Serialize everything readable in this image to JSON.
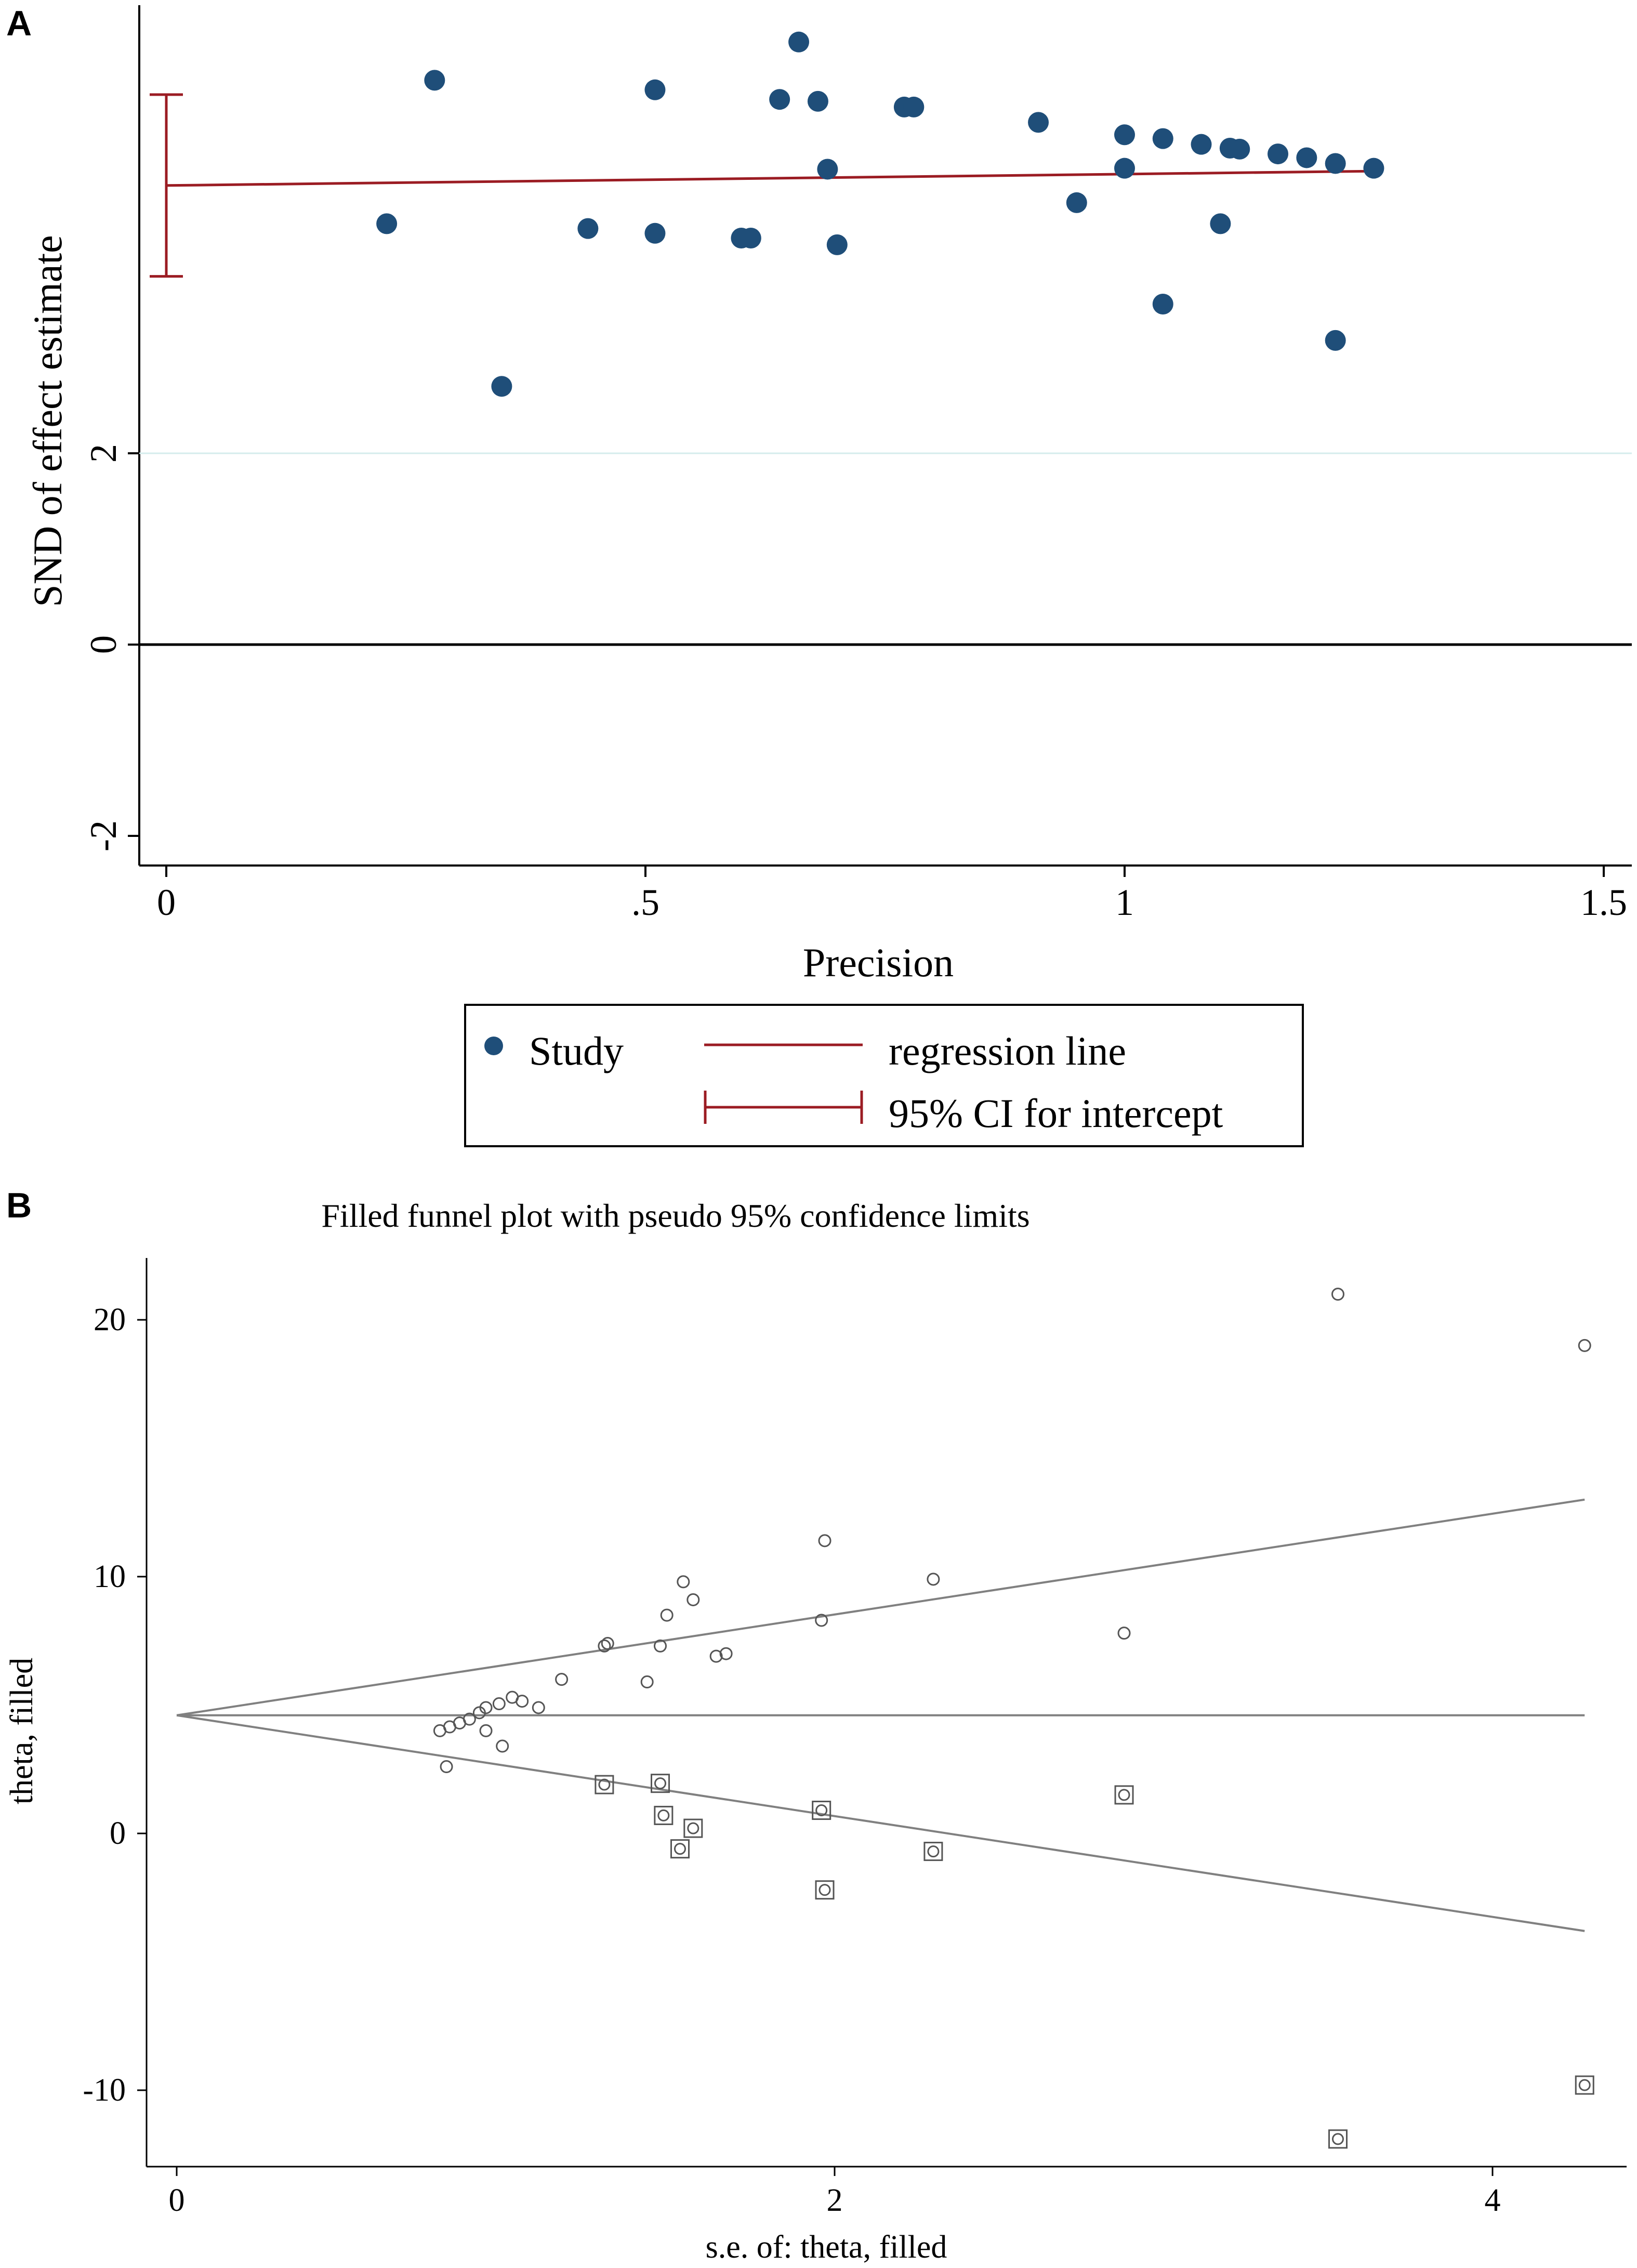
{
  "panels": {
    "a": {
      "letter": "A"
    },
    "b": {
      "letter": "B"
    }
  },
  "colors": {
    "study_marker": "#1f4e79",
    "regression": "#9b1c23",
    "axis": "#000000",
    "funnel": "#808080",
    "reference_line": "#d5ecec"
  },
  "chart_data": [
    {
      "type": "scatter",
      "title": "",
      "xlabel": "Precision",
      "ylabel": "SND of effect estimate",
      "xlim": [
        -0.03,
        1.53
      ],
      "ylim": [
        -2.3,
        6.7
      ],
      "xticks": [
        0,
        0.5,
        1,
        1.5
      ],
      "xtick_labels": [
        "0",
        ".5",
        "1",
        "1.5"
      ],
      "yticks": [
        -2,
        0,
        2
      ],
      "ytick_labels": [
        "-2",
        "0",
        "2"
      ],
      "reference_lines": [
        {
          "y": 0,
          "style": "solid-black"
        },
        {
          "y": 2,
          "style": "faint"
        }
      ],
      "series": [
        {
          "name": "Study",
          "marker": "filled-circle",
          "points": [
            [
              0.23,
              4.4
            ],
            [
              0.28,
              5.9
            ],
            [
              0.35,
              2.7
            ],
            [
              0.44,
              4.35
            ],
            [
              0.51,
              5.8
            ],
            [
              0.51,
              4.3
            ],
            [
              0.6,
              4.25
            ],
            [
              0.61,
              4.25
            ],
            [
              0.64,
              5.7
            ],
            [
              0.66,
              6.3
            ],
            [
              0.68,
              5.68
            ],
            [
              0.69,
              4.97
            ],
            [
              0.7,
              4.18
            ],
            [
              0.77,
              5.62
            ],
            [
              0.78,
              5.62
            ],
            [
              0.91,
              5.46
            ],
            [
              0.95,
              4.62
            ],
            [
              1.0,
              5.33
            ],
            [
              1.0,
              4.98
            ],
            [
              1.04,
              5.29
            ],
            [
              1.04,
              3.56
            ],
            [
              1.08,
              5.23
            ],
            [
              1.1,
              4.4
            ],
            [
              1.11,
              5.19
            ],
            [
              1.12,
              5.18
            ],
            [
              1.16,
              5.13
            ],
            [
              1.19,
              5.09
            ],
            [
              1.22,
              5.03
            ],
            [
              1.22,
              3.18
            ],
            [
              1.26,
              4.98
            ]
          ]
        },
        {
          "name": "regression line",
          "type": "line",
          "points": [
            [
              0,
              4.8
            ],
            [
              1.26,
              4.95
            ]
          ]
        }
      ],
      "ci_intercept": {
        "x": 0,
        "low": 3.85,
        "high": 5.75
      },
      "legend": {
        "position": "bottom",
        "entries": [
          "Study",
          "regression line",
          "95% CI for intercept"
        ]
      }
    },
    {
      "type": "scatter",
      "title": "Filled  funnel plot with pseudo 95% confidence limits",
      "xlabel": "s.e. of: theta, filled",
      "ylabel": "theta, filled",
      "xlim": [
        -0.1,
        4.4
      ],
      "ylim": [
        -13.3,
        22.5
      ],
      "xticks": [
        0,
        2,
        4
      ],
      "xtick_labels": [
        "0",
        "2",
        "4"
      ],
      "yticks": [
        -10,
        0,
        10,
        20
      ],
      "ytick_labels": [
        "-10",
        "0",
        "10",
        "20"
      ],
      "pooled_estimate": 4.6,
      "funnel_lines": [
        {
          "name": "upper limit",
          "points": [
            [
              0,
              4.6
            ],
            [
              4.28,
              13.0
            ]
          ]
        },
        {
          "name": "pooled estimate",
          "points": [
            [
              0,
              4.6
            ],
            [
              4.28,
              4.6
            ]
          ]
        },
        {
          "name": "lower limit",
          "points": [
            [
              0,
              4.6
            ],
            [
              4.28,
              -3.8
            ]
          ]
        }
      ],
      "series": [
        {
          "name": "observed studies",
          "marker": "hollow-circle",
          "points": [
            [
              0.8,
              4.0
            ],
            [
              0.83,
              4.15
            ],
            [
              0.86,
              4.3
            ],
            [
              0.89,
              4.45
            ],
            [
              0.92,
              4.7
            ],
            [
              0.94,
              4.9
            ],
            [
              0.98,
              5.05
            ],
            [
              1.02,
              5.3
            ],
            [
              1.05,
              5.15
            ],
            [
              1.1,
              4.9
            ],
            [
              1.17,
              6.0
            ],
            [
              0.94,
              4.0
            ],
            [
              0.99,
              3.4
            ],
            [
              0.82,
              2.6
            ],
            [
              1.3,
              7.3
            ],
            [
              1.31,
              7.4
            ],
            [
              1.43,
              5.9
            ],
            [
              1.47,
              7.3
            ],
            [
              1.49,
              8.5
            ],
            [
              1.54,
              9.8
            ],
            [
              1.57,
              9.1
            ],
            [
              1.64,
              6.9
            ],
            [
              1.67,
              7.0
            ],
            [
              1.96,
              8.3
            ],
            [
              1.97,
              11.4
            ],
            [
              2.3,
              9.9
            ],
            [
              2.88,
              7.8
            ],
            [
              3.53,
              21.0
            ],
            [
              4.28,
              19.0
            ]
          ]
        },
        {
          "name": "filled studies",
          "marker": "boxed-circle",
          "points": [
            [
              1.3,
              1.9
            ],
            [
              1.47,
              1.95
            ],
            [
              1.48,
              0.7
            ],
            [
              1.53,
              -0.6
            ],
            [
              1.57,
              0.2
            ],
            [
              1.96,
              0.9
            ],
            [
              1.97,
              -2.2
            ],
            [
              2.3,
              -0.7
            ],
            [
              2.88,
              1.5
            ],
            [
              3.53,
              -11.9
            ],
            [
              4.28,
              -9.8
            ]
          ]
        }
      ]
    }
  ]
}
